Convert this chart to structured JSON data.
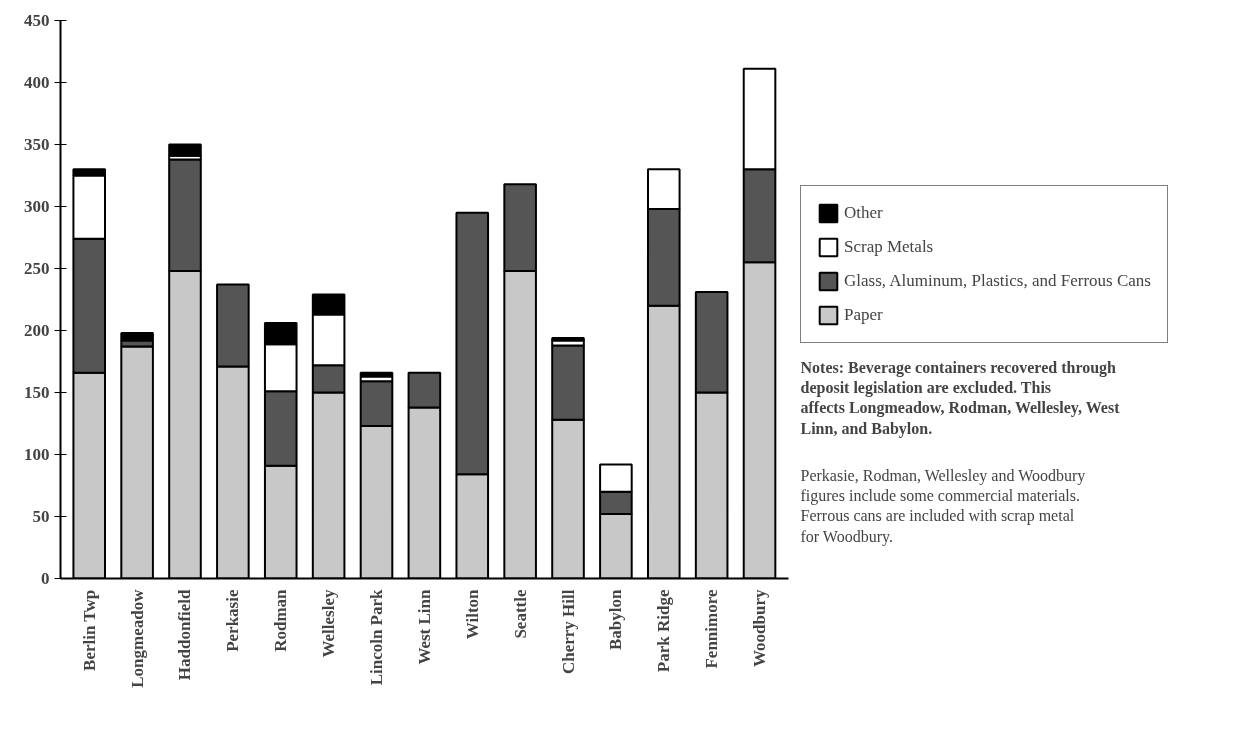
{
  "chart_data": {
    "type": "bar",
    "stacked": true,
    "categories": [
      "Berlin Twp",
      "Longmeadow",
      "Haddonfield",
      "Perkasie",
      "Rodman",
      "Wellesley",
      "Lincoln Park",
      "West Linn",
      "Wilton",
      "Seattle",
      "Cherry Hill",
      "Babylon",
      "Park Ridge",
      "Fennimore",
      "Woodbury"
    ],
    "series": [
      {
        "name": "Paper",
        "color": "#c8c8c8",
        "values": [
          166,
          187,
          248,
          171,
          91,
          150,
          123,
          138,
          84,
          248,
          128,
          52,
          220,
          150,
          255
        ]
      },
      {
        "name": "Glass, Aluminum, Plastics, and Ferrous Cans",
        "color": "#555555",
        "values": [
          108,
          5,
          90,
          66,
          60,
          22,
          36,
          28,
          211,
          70,
          60,
          18,
          78,
          81,
          75
        ]
      },
      {
        "name": "Scrap Metals",
        "color": "#ffffff",
        "values": [
          51,
          null,
          3,
          null,
          38,
          41,
          4,
          null,
          null,
          null,
          4,
          22,
          32,
          null,
          81
        ]
      },
      {
        "name": "Other",
        "color": "#000000",
        "values": [
          5,
          6,
          9,
          null,
          17,
          16,
          3,
          null,
          null,
          null,
          2,
          null,
          null,
          null,
          null
        ]
      }
    ],
    "ylim": [
      0,
      450
    ],
    "yticks": [
      0,
      50,
      100,
      150,
      200,
      250,
      300,
      350,
      400,
      450
    ],
    "grid": false,
    "legend": "right",
    "annotations": [
      "Notes: Beverage containers recovered through deposit legislation are excluded. This affects Longmeadow, Rodman, Wellesley, West Linn, and Babylon.",
      "Perkasie, Rodman, Wellesley and Woodbury figures include some commercial materials. Ferrous cans are included with scrap metal for Woodbury."
    ]
  }
}
